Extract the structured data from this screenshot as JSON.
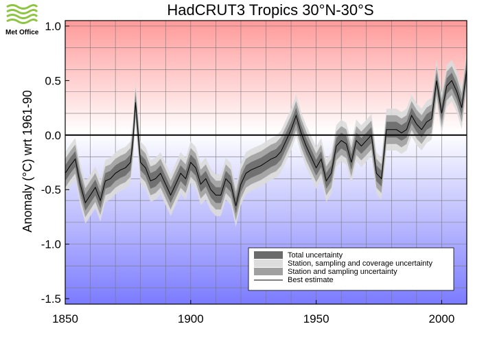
{
  "logo": {
    "text": "Met Office"
  },
  "colors": {
    "warm": "#ff9a9a",
    "cool": "#7b7bff",
    "total_unc": "#6b6b6b",
    "coverage_unc": "#dcdcdc",
    "sampling_unc": "#a0a0a0",
    "best": "#000000",
    "logo_green": "#8cc63f"
  },
  "chart_data": {
    "type": "line",
    "title": "HadCRUT3 Tropics 30°N-30°S",
    "xlabel": "",
    "ylabel": "Anomaly (°C) wrt 1961-90",
    "xlim": [
      1850,
      2010
    ],
    "ylim": [
      -1.55,
      1.05
    ],
    "xticks": [
      1850,
      1900,
      1950,
      2000
    ],
    "xtick_labels": [
      "1850",
      "1900",
      "1950",
      "2000"
    ],
    "yticks": [
      -1.5,
      -1.0,
      -0.5,
      0.0,
      0.5,
      1.0
    ],
    "ytick_labels": [
      "-1.5",
      "-1.0",
      "-0.5",
      "0.0",
      "0.5",
      "1.0"
    ],
    "grid": true,
    "legend_position": "bottom-right",
    "legend": [
      {
        "label": "Total uncertainty",
        "kind": "box",
        "color": "#6b6b6b"
      },
      {
        "label": "Station, sampling and coverage uncertainty",
        "kind": "box",
        "color": "#dcdcdc"
      },
      {
        "label": "Station and sampling uncertainty",
        "kind": "box",
        "color": "#a0a0a0"
      },
      {
        "label": "Best estimate",
        "kind": "line",
        "color": "#000000"
      }
    ],
    "series": [
      {
        "name": "Best estimate",
        "x": [
          1850,
          1852,
          1854,
          1856,
          1858,
          1860,
          1862,
          1864,
          1866,
          1868,
          1870,
          1872,
          1874,
          1876,
          1877,
          1878,
          1880,
          1882,
          1884,
          1886,
          1888,
          1890,
          1892,
          1894,
          1896,
          1898,
          1900,
          1902,
          1904,
          1906,
          1908,
          1910,
          1912,
          1914,
          1916,
          1918,
          1920,
          1922,
          1924,
          1926,
          1928,
          1930,
          1932,
          1934,
          1936,
          1938,
          1940,
          1942,
          1944,
          1946,
          1948,
          1950,
          1952,
          1954,
          1956,
          1958,
          1960,
          1962,
          1964,
          1966,
          1968,
          1970,
          1972,
          1974,
          1976,
          1978,
          1980,
          1982,
          1984,
          1986,
          1988,
          1990,
          1992,
          1994,
          1996,
          1998,
          2000,
          2002,
          2004,
          2006,
          2008,
          2010
        ],
        "y": [
          -0.35,
          -0.28,
          -0.22,
          -0.45,
          -0.62,
          -0.55,
          -0.48,
          -0.6,
          -0.42,
          -0.4,
          -0.35,
          -0.32,
          -0.3,
          -0.25,
          -0.05,
          0.3,
          -0.25,
          -0.3,
          -0.42,
          -0.4,
          -0.35,
          -0.45,
          -0.55,
          -0.45,
          -0.35,
          -0.4,
          -0.25,
          -0.3,
          -0.45,
          -0.4,
          -0.5,
          -0.55,
          -0.55,
          -0.4,
          -0.45,
          -0.65,
          -0.45,
          -0.35,
          -0.32,
          -0.3,
          -0.28,
          -0.25,
          -0.22,
          -0.2,
          -0.15,
          -0.05,
          0.05,
          0.18,
          0.02,
          -0.1,
          -0.2,
          -0.3,
          -0.22,
          -0.42,
          -0.35,
          -0.1,
          -0.05,
          -0.08,
          -0.25,
          -0.05,
          -0.1,
          -0.05,
          0.0,
          -0.35,
          -0.4,
          0.05,
          0.05,
          0.05,
          0.02,
          0.05,
          0.18,
          0.1,
          0.05,
          0.12,
          0.15,
          0.5,
          0.2,
          0.45,
          0.5,
          0.4,
          0.25,
          0.6
        ],
        "uncertainty": 0.12
      }
    ]
  }
}
